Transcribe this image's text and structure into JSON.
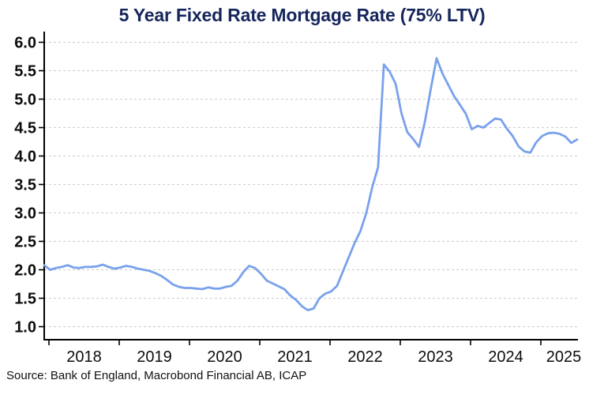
{
  "window": {
    "title": "5 Year Fixed Rate Mortgage Rate (75% LTV)"
  },
  "source_caption": "Source: Bank of England, Macrobond Financial AB, ICAP",
  "colors": {
    "background": "#ffffff",
    "title": "#16265c",
    "line": "#79a1ec",
    "grid": "#cbcbcb",
    "axis": "#000000",
    "tick_label": "#0d0d0d"
  },
  "chart_data": {
    "type": "line",
    "title": "5 Year Fixed Rate Mortgage Rate (75% LTV)",
    "xlabel": "",
    "ylabel": "",
    "unit": "percent",
    "grid": "horizontal-dashed",
    "legend": "none",
    "ylim": [
      0.75,
      6.18
    ],
    "y_ticks": [
      1.0,
      1.5,
      2.0,
      2.5,
      3.0,
      3.5,
      4.0,
      4.5,
      5.0,
      5.5,
      6.0
    ],
    "y_tick_labels": [
      "1.0",
      "1.5",
      "2.0",
      "2.5",
      "3.0",
      "3.5",
      "4.0",
      "4.5",
      "5.0",
      "5.5",
      "6.0"
    ],
    "x_tick_labels": [
      "2018",
      "2019",
      "2020",
      "2021",
      "2022",
      "2023",
      "2024",
      "2025"
    ],
    "x_range": [
      "2017-12",
      "2025-07"
    ],
    "series": [
      {
        "name": "5 Year Fixed Rate Mortgage Rate (75% LTV)",
        "start_month": "2017-12",
        "frequency": "monthly",
        "values": [
          2.08,
          2.0,
          2.03,
          2.05,
          2.08,
          2.04,
          2.03,
          2.05,
          2.05,
          2.06,
          2.09,
          2.05,
          2.02,
          2.04,
          2.07,
          2.05,
          2.02,
          2.0,
          1.98,
          1.94,
          1.89,
          1.82,
          1.74,
          1.7,
          1.68,
          1.68,
          1.67,
          1.66,
          1.69,
          1.67,
          1.67,
          1.7,
          1.72,
          1.81,
          1.96,
          2.07,
          2.03,
          1.93,
          1.81,
          1.76,
          1.71,
          1.66,
          1.55,
          1.47,
          1.36,
          1.29,
          1.32,
          1.5,
          1.58,
          1.62,
          1.72,
          1.97,
          2.22,
          2.47,
          2.68,
          3.0,
          3.45,
          3.8,
          5.61,
          5.48,
          5.27,
          4.75,
          4.42,
          4.3,
          4.16,
          4.6,
          5.18,
          5.72,
          5.45,
          5.25,
          5.05,
          4.9,
          4.74,
          4.47,
          4.53,
          4.5,
          4.58,
          4.66,
          4.64,
          4.48,
          4.35,
          4.17,
          4.08,
          4.06,
          4.24,
          4.35,
          4.4,
          4.41,
          4.39,
          4.34,
          4.23,
          4.29
        ]
      }
    ]
  }
}
